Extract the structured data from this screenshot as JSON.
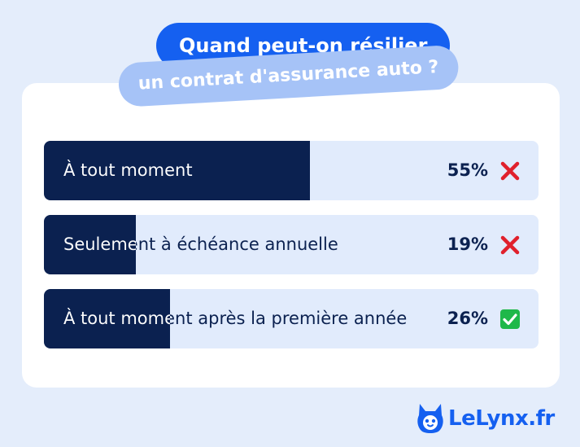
{
  "title": {
    "line1": "Quand peut-on résilier",
    "line2": "un contrat d'assurance auto ?"
  },
  "colors": {
    "bar_fill": "#0b2150",
    "bar_track": "#e1ebfc",
    "title_primary": "#1560f0",
    "title_secondary": "#a6c3f7",
    "wrong": "#e0202c",
    "correct": "#1fb84a"
  },
  "chart_data": {
    "type": "bar",
    "orientation": "horizontal",
    "categories": [
      "À tout moment",
      "Seulement à échéance annuelle",
      "À tout moment après la première année"
    ],
    "values": [
      55,
      19,
      26
    ],
    "value_labels": [
      "55%",
      "19%",
      "26%"
    ],
    "markers": [
      "cross-icon",
      "cross-icon",
      "check-icon"
    ],
    "xlim": [
      0,
      100
    ]
  },
  "brand": {
    "name": "LeLynx.fr"
  }
}
